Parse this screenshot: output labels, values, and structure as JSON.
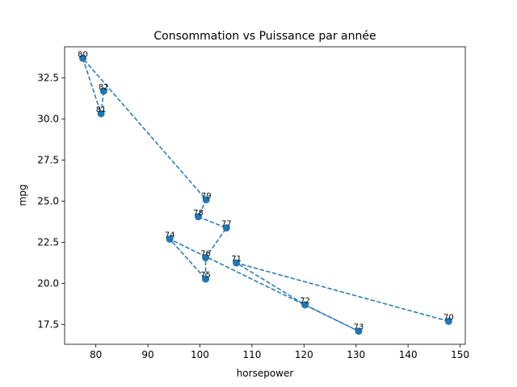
{
  "chart_data": {
    "type": "line",
    "title": "Consommation vs Puissance par année",
    "xlabel": "horsepower",
    "ylabel": "mpg",
    "xlim": [
      74,
      151
    ],
    "ylim": [
      16.3,
      34.4
    ],
    "xticks": [
      80,
      90,
      100,
      110,
      120,
      130,
      140,
      150
    ],
    "yticks": [
      17.5,
      20.0,
      22.5,
      25.0,
      27.5,
      30.0,
      32.5
    ],
    "ytick_labels": [
      "17.5",
      "20.0",
      "22.5",
      "25.0",
      "27.5",
      "30.0",
      "32.5"
    ],
    "grid": false,
    "line_style": "dashed",
    "marker": "circle",
    "series_color": "#1f77b4",
    "points": [
      {
        "label": "70",
        "x": 147.8,
        "y": 17.7
      },
      {
        "label": "71",
        "x": 107.0,
        "y": 21.25
      },
      {
        "label": "72",
        "x": 120.2,
        "y": 18.7
      },
      {
        "label": "73",
        "x": 130.5,
        "y": 17.1
      },
      {
        "label": "74",
        "x": 94.2,
        "y": 22.7
      },
      {
        "label": "75",
        "x": 101.1,
        "y": 20.27
      },
      {
        "label": "76",
        "x": 101.1,
        "y": 21.57
      },
      {
        "label": "77",
        "x": 105.1,
        "y": 23.38
      },
      {
        "label": "78",
        "x": 99.7,
        "y": 24.06
      },
      {
        "label": "79",
        "x": 101.2,
        "y": 25.09
      },
      {
        "label": "80",
        "x": 77.5,
        "y": 33.7
      },
      {
        "label": "81",
        "x": 81.0,
        "y": 30.33
      },
      {
        "label": "82",
        "x": 81.5,
        "y": 31.7
      }
    ]
  }
}
